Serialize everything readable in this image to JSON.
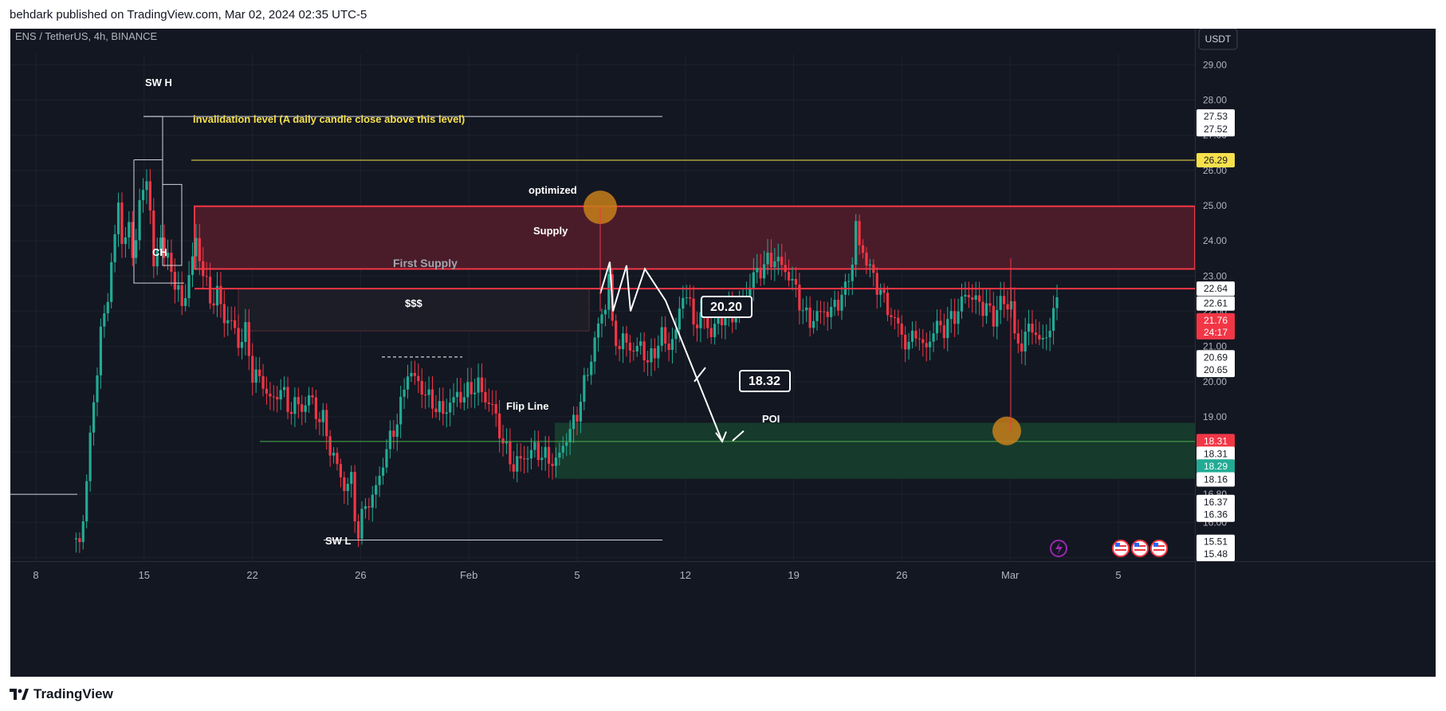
{
  "header": {
    "published": "behdark published on TradingView.com, Mar 02, 2024 02:35 UTC-5"
  },
  "footer": {
    "brand": "TradingView"
  },
  "chart_data": {
    "type": "candlestick",
    "symbol": "ENS / TetherUS, 4h, BINANCE",
    "currency_button": "USDT",
    "ylim": [
      14.9,
      29.3
    ],
    "y_ticks": [
      "29.00",
      "28.00",
      "27.00",
      "26.00",
      "25.00",
      "24.00",
      "23.00",
      "22.00",
      "21.00",
      "20.00",
      "19.00",
      "18.00",
      "16.80",
      "16.00",
      "15.00"
    ],
    "price_labels": [
      {
        "text": "27.53",
        "v": 27.53,
        "bg": "#ffffff",
        "fg": "#131722"
      },
      {
        "text": "27.52",
        "v": 27.17,
        "bg": "#ffffff",
        "fg": "#131722"
      },
      {
        "text": "26.29",
        "v": 26.29,
        "bg": "#f7e04c",
        "fg": "#131722"
      },
      {
        "text": "22.64",
        "v": 22.64,
        "bg": "#ffffff",
        "fg": "#131722"
      },
      {
        "text": "22.61",
        "v": 22.22,
        "bg": "#ffffff",
        "fg": "#131722"
      },
      {
        "text": "21.76",
        "v": 21.74,
        "bg": "#f23645",
        "fg": "#ffffff"
      },
      {
        "text": "24:17",
        "v": 21.4,
        "bg": "#f23645",
        "fg": "#ffffff"
      },
      {
        "text": "20.69",
        "v": 20.69,
        "bg": "#ffffff",
        "fg": "#131722"
      },
      {
        "text": "20.65",
        "v": 20.33,
        "bg": "#ffffff",
        "fg": "#131722"
      },
      {
        "text": "18.31",
        "v": 18.31,
        "bg": "#f23645",
        "fg": "#ffffff"
      },
      {
        "text": "18.31",
        "v": 17.95,
        "bg": "#ffffff",
        "fg": "#131722"
      },
      {
        "text": "18.29",
        "v": 17.59,
        "bg": "#22ab94",
        "fg": "#ffffff"
      },
      {
        "text": "18.16",
        "v": 17.22,
        "bg": "#ffffff",
        "fg": "#131722"
      },
      {
        "text": "16.37",
        "v": 16.58,
        "bg": "#ffffff",
        "fg": "#131722"
      },
      {
        "text": "16.36",
        "v": 16.22,
        "bg": "#ffffff",
        "fg": "#131722"
      },
      {
        "text": "15.51",
        "v": 15.45,
        "bg": "#ffffff",
        "fg": "#131722"
      },
      {
        "text": "15.48",
        "v": 15.1,
        "bg": "#ffffff",
        "fg": "#131722"
      }
    ],
    "x_ticks": [
      "8",
      "15",
      "22",
      "26",
      "Feb",
      "5",
      "12",
      "19",
      "26",
      "Mar",
      "5"
    ],
    "candle_path": [
      [
        0,
        15.4
      ],
      [
        2,
        15.5
      ],
      [
        3,
        16.1
      ],
      [
        4,
        17.2
      ],
      [
        6,
        19.5
      ],
      [
        8,
        21.3
      ],
      [
        10,
        22.5
      ],
      [
        12,
        24.1
      ],
      [
        13,
        25.1
      ],
      [
        14,
        24.0
      ],
      [
        16,
        24.3
      ],
      [
        17,
        23.6
      ],
      [
        19,
        24.9
      ],
      [
        21,
        25.9
      ],
      [
        22,
        24.8
      ],
      [
        23,
        23.2
      ],
      [
        25,
        24.2
      ],
      [
        26,
        23.6
      ],
      [
        28,
        23.2
      ],
      [
        30,
        22.5
      ],
      [
        31,
        22.1
      ],
      [
        33,
        23.0
      ],
      [
        35,
        24.0
      ],
      [
        37,
        23.1
      ],
      [
        39,
        22.3
      ],
      [
        41,
        22.5
      ],
      [
        43,
        21.8
      ],
      [
        45,
        21.7
      ],
      [
        47,
        21.1
      ],
      [
        49,
        21.4
      ],
      [
        51,
        20.2
      ],
      [
        53,
        20.1
      ],
      [
        55,
        19.7
      ],
      [
        57,
        19.4
      ],
      [
        59,
        19.9
      ],
      [
        61,
        19.2
      ],
      [
        63,
        19.4
      ],
      [
        65,
        19.2
      ],
      [
        67,
        19.6
      ],
      [
        69,
        19.1
      ],
      [
        71,
        18.9
      ],
      [
        73,
        18.1
      ],
      [
        75,
        17.6
      ],
      [
        77,
        17.0
      ],
      [
        79,
        17.2
      ],
      [
        80,
        16.2
      ],
      [
        81,
        15.7
      ],
      [
        82,
        16.1
      ],
      [
        83,
        16.5
      ],
      [
        85,
        16.7
      ],
      [
        87,
        17.3
      ],
      [
        89,
        18.1
      ],
      [
        91,
        18.6
      ],
      [
        93,
        19.3
      ],
      [
        95,
        20.3
      ],
      [
        97,
        20.1
      ],
      [
        99,
        19.8
      ],
      [
        101,
        19.5
      ],
      [
        103,
        19.3
      ],
      [
        105,
        19.1
      ],
      [
        107,
        19.4
      ],
      [
        109,
        19.6
      ],
      [
        111,
        19.6
      ],
      [
        113,
        19.8
      ],
      [
        115,
        19.9
      ],
      [
        117,
        19.5
      ],
      [
        119,
        19.3
      ],
      [
        121,
        18.6
      ],
      [
        123,
        18.0
      ],
      [
        125,
        17.6
      ],
      [
        127,
        17.8
      ],
      [
        129,
        17.9
      ],
      [
        131,
        18.1
      ],
      [
        133,
        17.9
      ],
      [
        135,
        17.8
      ],
      [
        137,
        17.7
      ],
      [
        139,
        18.2
      ],
      [
        141,
        18.6
      ],
      [
        143,
        19.1
      ],
      [
        145,
        19.9
      ],
      [
        147,
        20.7
      ],
      [
        149,
        21.6
      ],
      [
        151,
        22.2
      ],
      [
        152,
        23.0
      ],
      [
        153,
        21.5
      ],
      [
        155,
        21.0
      ],
      [
        157,
        21.2
      ],
      [
        159,
        20.8
      ],
      [
        161,
        21.1
      ],
      [
        163,
        20.5
      ],
      [
        165,
        20.9
      ],
      [
        167,
        21.3
      ],
      [
        169,
        21.0
      ],
      [
        171,
        21.4
      ],
      [
        173,
        22.6
      ],
      [
        175,
        22.1
      ],
      [
        177,
        21.6
      ],
      [
        179,
        21.9
      ],
      [
        181,
        21.3
      ],
      [
        183,
        21.8
      ],
      [
        185,
        21.9
      ],
      [
        187,
        21.9
      ],
      [
        189,
        22.0
      ],
      [
        191,
        22.5
      ],
      [
        193,
        23.0
      ],
      [
        195,
        23.2
      ],
      [
        197,
        23.4
      ],
      [
        199,
        23.5
      ],
      [
        201,
        23.3
      ],
      [
        203,
        23.0
      ],
      [
        205,
        22.6
      ],
      [
        207,
        22.0
      ],
      [
        209,
        21.7
      ],
      [
        211,
        21.9
      ],
      [
        213,
        22.0
      ],
      [
        215,
        22.0
      ],
      [
        217,
        22.3
      ],
      [
        219,
        22.6
      ],
      [
        221,
        23.4
      ],
      [
        222,
        24.5
      ],
      [
        223,
        23.8
      ],
      [
        225,
        23.5
      ],
      [
        227,
        22.9
      ],
      [
        229,
        22.6
      ],
      [
        231,
        22.0
      ],
      [
        233,
        21.8
      ],
      [
        235,
        21.3
      ],
      [
        237,
        21.0
      ],
      [
        239,
        21.5
      ],
      [
        241,
        20.9
      ],
      [
        243,
        21.2
      ],
      [
        245,
        21.6
      ],
      [
        247,
        21.5
      ],
      [
        249,
        21.8
      ],
      [
        251,
        22.0
      ],
      [
        253,
        22.5
      ],
      [
        255,
        22.4
      ],
      [
        257,
        22.2
      ],
      [
        259,
        22.1
      ],
      [
        261,
        21.8
      ],
      [
        263,
        22.3
      ],
      [
        265,
        22.1
      ],
      [
        266,
        22.4
      ],
      [
        267,
        21.2
      ],
      [
        268,
        21.0
      ],
      [
        270,
        21.3
      ],
      [
        272,
        21.6
      ],
      [
        274,
        21.1
      ],
      [
        276,
        21.3
      ],
      [
        278,
        21.9
      ],
      [
        279,
        22.3
      ]
    ],
    "annotations": {
      "sw_high": "SW H",
      "invalidation": "invalidation level (A daily candle close above this level)",
      "optimized": "optimized",
      "supply": "Supply",
      "first_supply": "First Supply",
      "liquidity": "$$$",
      "ch": "CH",
      "flip_line": "Flip Line",
      "poi": "POI",
      "sw_low": "SW L",
      "callout_1": "20.20",
      "callout_2": "18.32"
    },
    "levels": {
      "sw_high": 27.53,
      "invalidation": 26.29,
      "supply_zone_top": 24.98,
      "supply_zone_bottom": 23.2,
      "supply_line": 22.64,
      "first_supply_bottom": 21.44,
      "poi_top": 18.83,
      "poi_bottom": 17.24,
      "flip_line": 18.3,
      "sw_low": 15.5
    },
    "colors": {
      "background": "#131722",
      "bull": "#22ab94",
      "bear": "#f23645",
      "supply_fill": "#4a1c2a",
      "poi_fill": "#163a2b",
      "invalidation_line": "#f7e04c",
      "orange_marker": "#c77f1a"
    },
    "icons": [
      "lightning-icon",
      "us-flag-icon",
      "us-flag-icon",
      "us-flag-icon"
    ]
  }
}
